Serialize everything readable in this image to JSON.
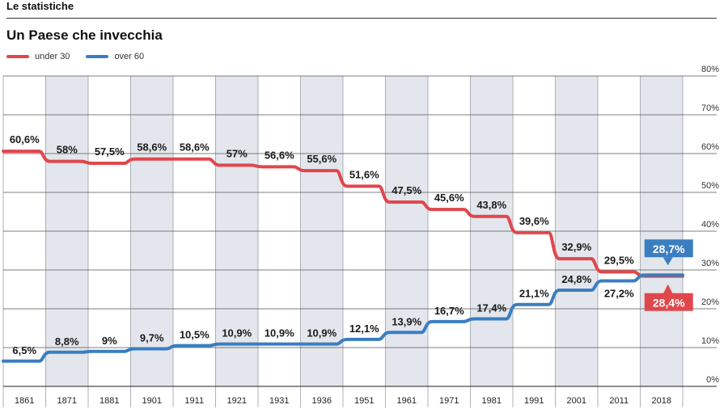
{
  "header": {
    "section": "Le statistiche",
    "title": "Un Paese che invecchia"
  },
  "legend": [
    {
      "name": "under 30",
      "color": "#e0474c"
    },
    {
      "name": "over 60",
      "color": "#3a7ec1"
    }
  ],
  "colors": {
    "under30": "#e0474c",
    "over60": "#3a7ec1",
    "band": "#e3e6ec",
    "grid": "#555555"
  },
  "chart_data": {
    "type": "line",
    "title": "Un Paese che invecchia",
    "categories": [
      "1861",
      "1871",
      "1881",
      "1901",
      "1911",
      "1921",
      "1931",
      "1936",
      "1951",
      "1961",
      "1971",
      "1981",
      "1991",
      "2001",
      "2011",
      "2018"
    ],
    "series": [
      {
        "name": "under 30",
        "values": [
          60.6,
          58,
          57.5,
          58.6,
          58.6,
          57,
          56.6,
          55.6,
          51.6,
          47.5,
          45.6,
          43.8,
          39.6,
          32.9,
          29.5,
          28.4
        ],
        "labels": [
          "60,6%",
          "58%",
          "57,5%",
          "58,6%",
          "58,6%",
          "57%",
          "56,6%",
          "55,6%",
          "51,6%",
          "47,5%",
          "45,6%",
          "43,8%",
          "39,6%",
          "32,9%",
          "29,5%",
          "28,4%"
        ]
      },
      {
        "name": "over 60",
        "values": [
          6.5,
          8.8,
          9,
          9.7,
          10.5,
          10.9,
          10.9,
          10.9,
          12.1,
          13.9,
          16.7,
          17.4,
          21.1,
          24.8,
          27.2,
          28.7
        ],
        "labels": [
          "6,5%",
          "8,8%",
          "9%",
          "9,7%",
          "10,5%",
          "10,9%",
          "10,9%",
          "10,9%",
          "12,1%",
          "13,9%",
          "16,7%",
          "17,4%",
          "21,1%",
          "24,8%",
          "27,2%",
          "28,7%"
        ]
      }
    ],
    "y_ticks": [
      "0%",
      "10%",
      "20%",
      "30%",
      "40%",
      "50%",
      "60%",
      "70%",
      "80%"
    ],
    "ylim": [
      0,
      80
    ],
    "grid": true,
    "legend_position": "top-left",
    "shaded_bands": "alternate columns"
  }
}
